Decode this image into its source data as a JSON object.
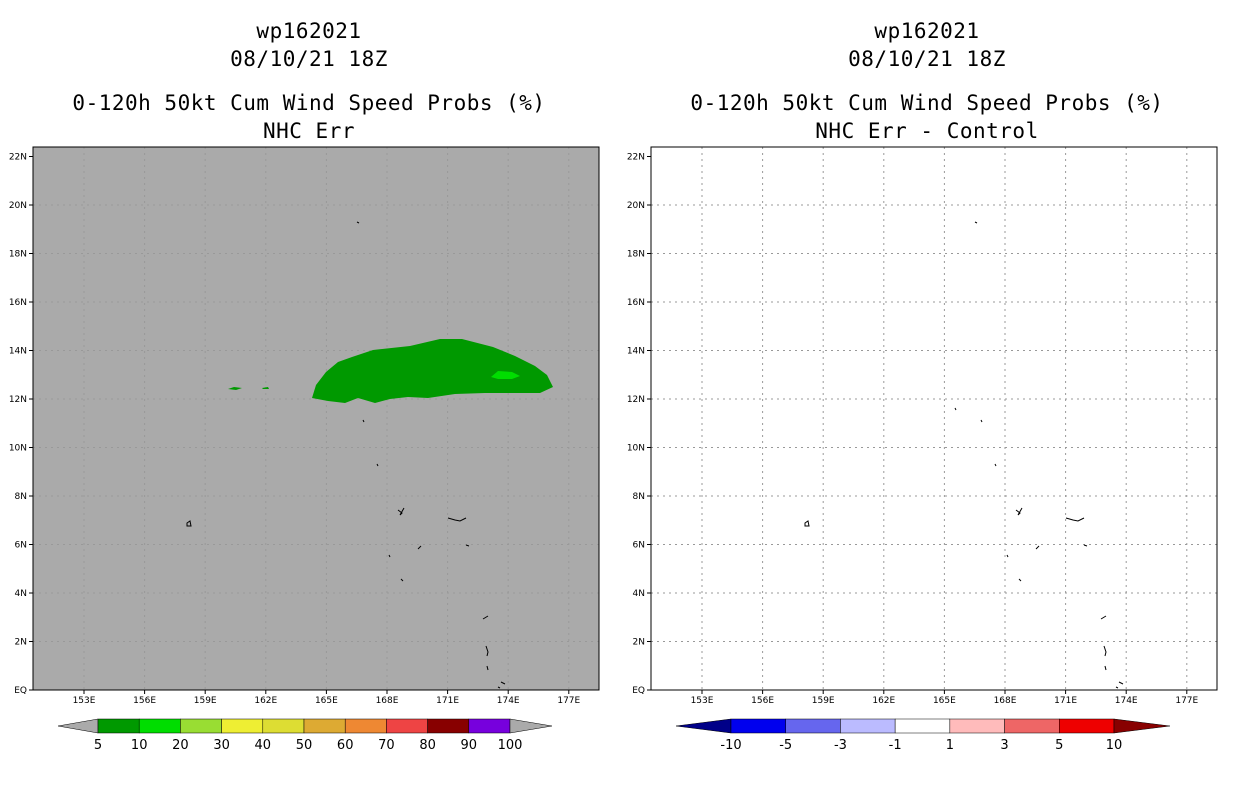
{
  "colors": {
    "background": "#ffffff",
    "left_map_fill": "#aaaaaa",
    "prob_10": "#009900",
    "prob_20": "#00dd00",
    "grid": "#aaaaaa",
    "coast": "#000000"
  },
  "left_panel": {
    "storm_id": "wp162021",
    "datetime": "08/10/21 18Z",
    "product": "0-120h 50kt Cum Wind Speed Probs (%)",
    "subtitle": "NHC Err",
    "y_ticks": [
      "22N",
      "20N",
      "18N",
      "16N",
      "14N",
      "12N",
      "10N",
      "8N",
      "6N",
      "4N",
      "2N",
      "EQ"
    ],
    "x_ticks": [
      "153E",
      "156E",
      "159E",
      "162E",
      "165E",
      "168E",
      "171E",
      "174E",
      "177E"
    ],
    "colorbar": {
      "labels": [
        "5",
        "10",
        "20",
        "30",
        "40",
        "50",
        "60",
        "70",
        "80",
        "90",
        "100"
      ],
      "under_color": "#aaaaaa",
      "over_color": "#aaaaaa",
      "colors": [
        "#009900",
        "#00dd00",
        "#99dd33",
        "#eeee33",
        "#dddd33",
        "#ddaa33",
        "#ee8833",
        "#ee4444",
        "#880000",
        "#7700dd"
      ]
    }
  },
  "right_panel": {
    "storm_id": "wp162021",
    "datetime": "08/10/21 18Z",
    "product": "0-120h 50kt Cum Wind Speed Probs (%)",
    "subtitle": "NHC Err - Control",
    "y_ticks": [
      "22N",
      "20N",
      "18N",
      "16N",
      "14N",
      "12N",
      "10N",
      "8N",
      "6N",
      "4N",
      "2N",
      "EQ"
    ],
    "x_ticks": [
      "153E",
      "156E",
      "159E",
      "162E",
      "165E",
      "168E",
      "171E",
      "174E",
      "177E"
    ],
    "colorbar": {
      "labels": [
        "-10",
        "-5",
        "-3",
        "-1",
        "1",
        "3",
        "5",
        "10"
      ],
      "under_color": "#000088",
      "over_color": "#880000",
      "colors": [
        "#0000ee",
        "#6666ee",
        "#bbbbff",
        "#ffffff",
        "#ffbbbb",
        "#ee6666",
        "#ee0000"
      ]
    }
  }
}
